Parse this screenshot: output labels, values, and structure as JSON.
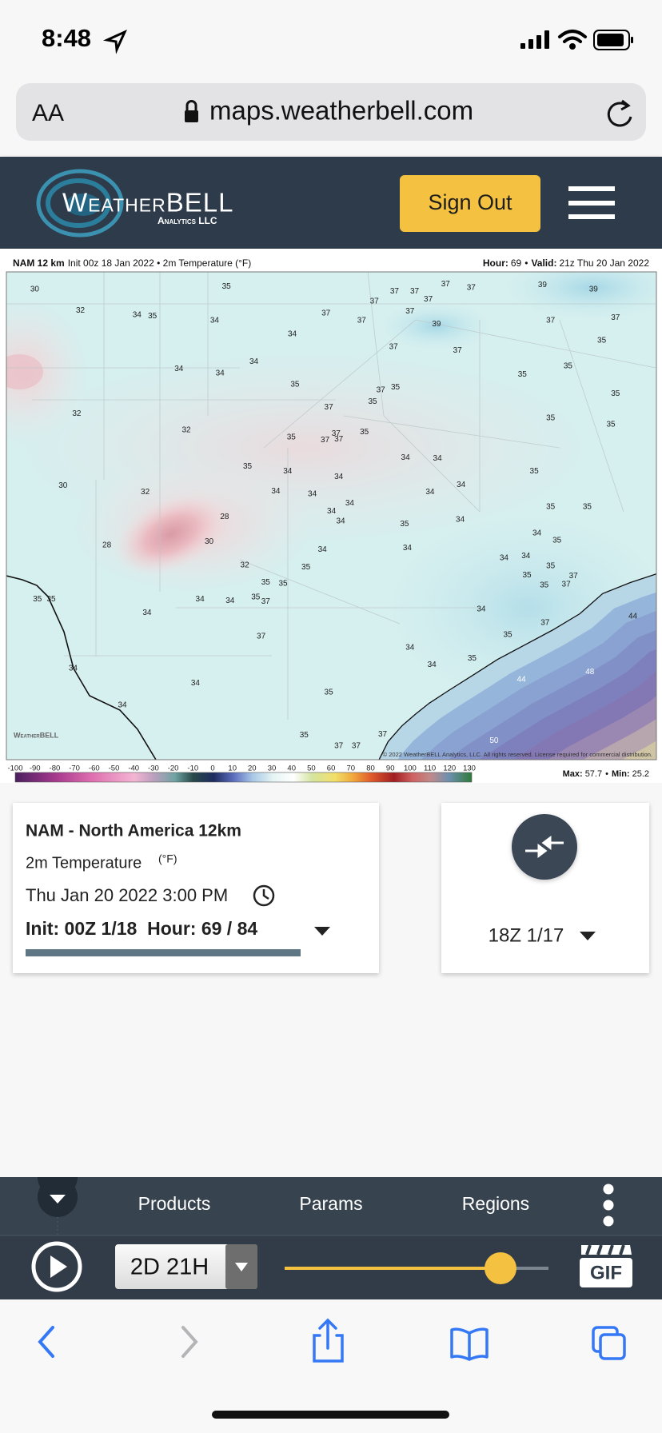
{
  "status_bar": {
    "time": "8:48"
  },
  "browser": {
    "text_size": "AA",
    "url": "maps.weatherbell.com"
  },
  "header": {
    "logo": "WeatherBELL",
    "logo_sub": "Analytics LLC",
    "sign_out": "Sign Out"
  },
  "map": {
    "model": "NAM 12 km",
    "title": "Init 00z 18 Jan 2022 • 2m Temperature (°F)",
    "hour_label": "Hour:",
    "hour": "69",
    "sep": "•",
    "valid_label": "Valid:",
    "valid": "21z Thu 20 Jan 2022",
    "copyright": "© 2022 WeatherBELL Analytics, LLC. All rights reserved. License required for commercial distribution.",
    "watermark": "WeatherBELL",
    "labels": [
      30,
      35,
      32,
      34,
      35,
      34,
      37,
      37,
      37,
      37,
      37,
      37,
      37,
      37,
      39,
      39,
      37,
      39,
      37,
      37,
      34,
      37,
      37,
      35,
      34,
      34,
      34,
      35,
      37,
      35,
      35,
      35,
      35,
      35,
      32,
      37,
      35,
      35,
      32,
      35,
      37,
      37,
      37,
      35,
      34,
      34,
      35,
      30,
      32,
      35,
      34,
      34,
      34,
      34,
      34,
      34,
      34,
      34,
      34,
      28,
      35,
      34,
      35,
      35,
      28,
      30,
      34,
      35,
      34,
      34,
      34,
      34,
      35,
      32,
      35,
      37,
      35,
      35,
      35,
      37,
      35,
      35,
      35,
      34,
      34,
      35,
      37,
      34,
      34,
      44,
      37,
      35,
      37,
      34,
      35,
      34,
      34,
      44,
      48,
      34,
      35,
      34,
      35,
      37,
      37,
      37,
      50
    ],
    "colorbar": {
      "ticks": [
        -100,
        -90,
        -80,
        -70,
        -60,
        -50,
        -40,
        -30,
        -20,
        -10,
        0,
        10,
        20,
        30,
        40,
        50,
        60,
        70,
        80,
        90,
        100,
        110,
        120,
        130
      ],
      "max_label": "Max:",
      "max": "57.7",
      "min_label": "Min:",
      "min": "25.2"
    }
  },
  "card": {
    "model": "NAM - North America 12km",
    "param": "2m Temperature",
    "unit": "(°F)",
    "valid": "Thu Jan 20 2022 3:00 PM",
    "init": "Init: 00Z 1/18  Hour: 69 / 84"
  },
  "compare": {
    "run": "18Z 1/17"
  },
  "toolbar": {
    "products": "Products",
    "params": "Params",
    "regions": "Regions",
    "step": "2D 21H",
    "gif": "GIF"
  }
}
